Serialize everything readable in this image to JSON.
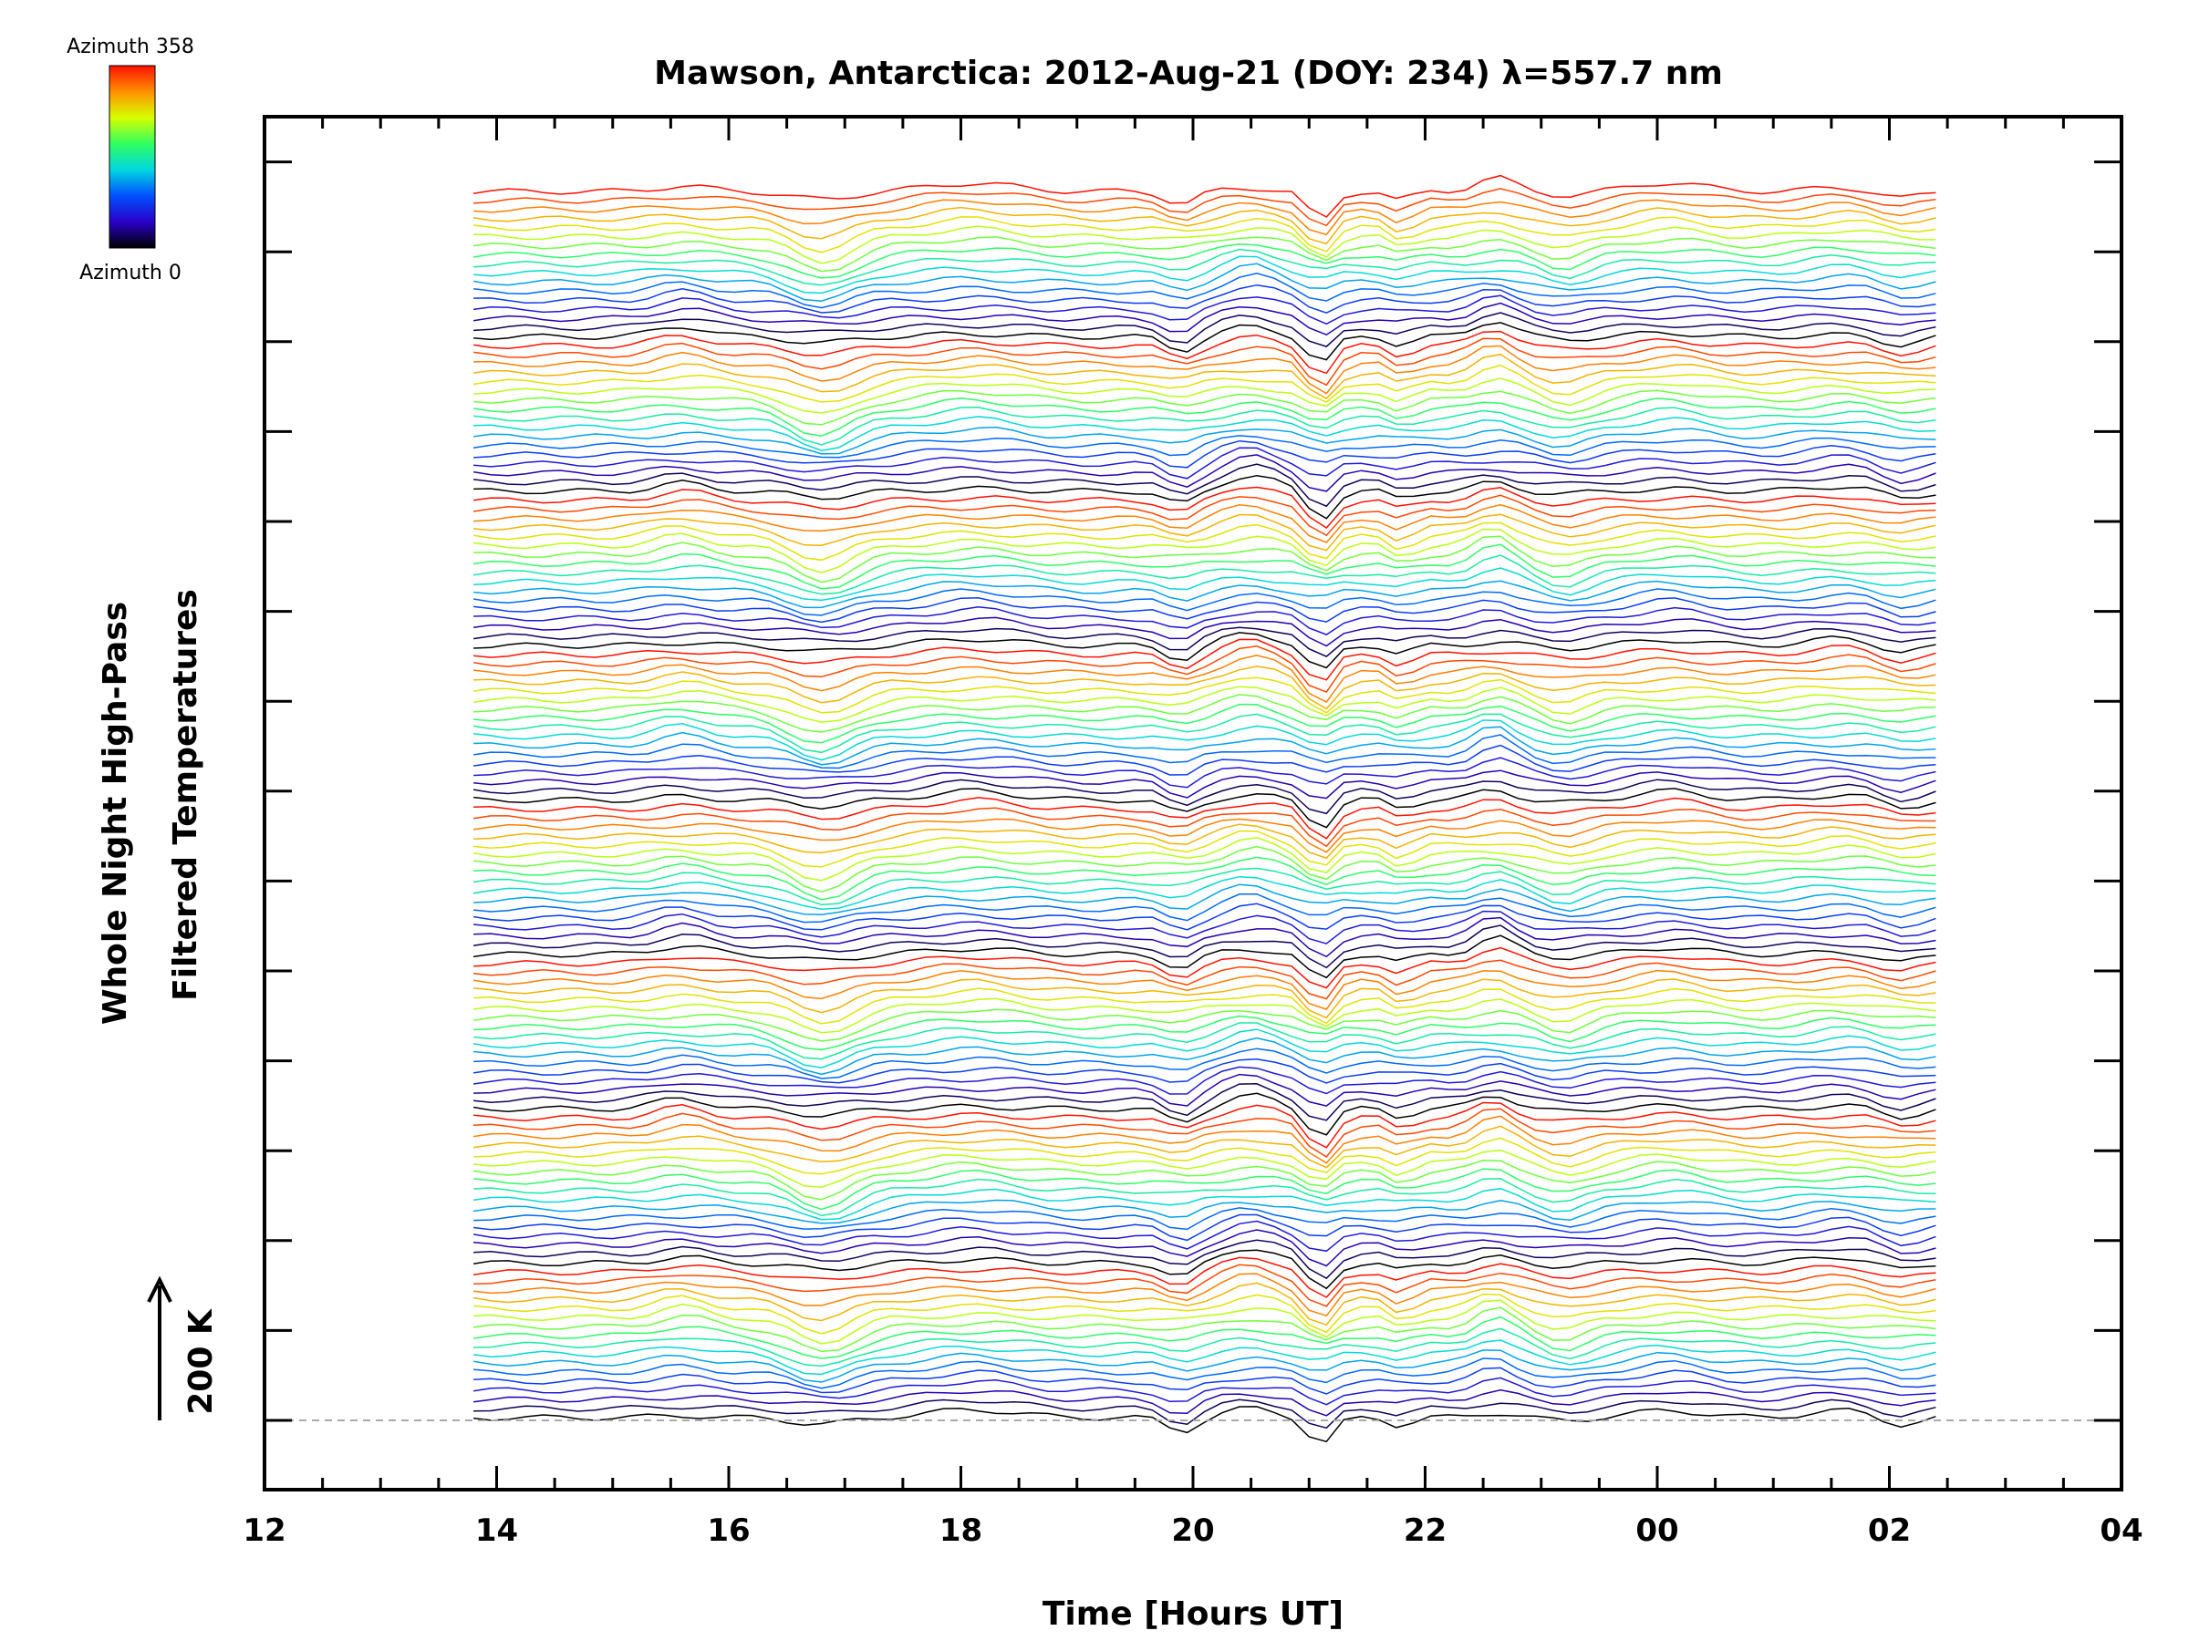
{
  "chart_data": {
    "type": "line",
    "title": "Mawson, Antarctica: 2012-Aug-21 (DOY: 234) λ=557.7 nm",
    "xlabel": "Time [Hours UT]",
    "ylabel_lines": [
      "Whole Night High-Pass",
      "Filtered Temperatures"
    ],
    "scale_label": "200 K",
    "xlim": [
      12,
      28
    ],
    "x_tick_labels": [
      "12",
      "14",
      "16",
      "18",
      "20",
      "22",
      "00",
      "02",
      "04"
    ],
    "data_x_range": [
      13.8,
      26.5
    ],
    "colorbar": {
      "top_label": "Azimuth 358",
      "bottom_label": "Azimuth 0",
      "colormap": "rainbow",
      "colors": [
        "#000000",
        "#2b00c8",
        "#0050ff",
        "#00d7e0",
        "#30ff60",
        "#d8ff00",
        "#ff9000",
        "#ff1000"
      ]
    },
    "n_azimuth_traces": 136,
    "baseline_dashed": true,
    "grid": false,
    "legend": "none"
  }
}
